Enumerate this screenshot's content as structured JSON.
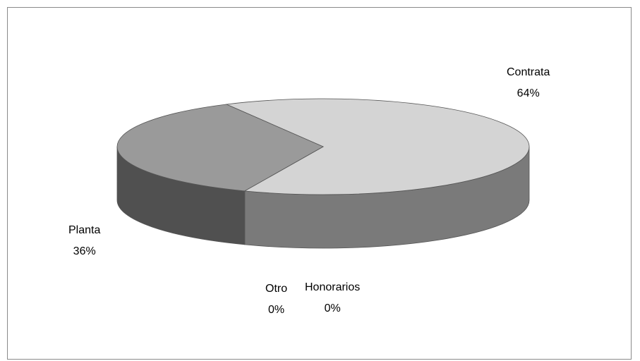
{
  "chart_data": {
    "type": "pie",
    "style": "3d",
    "title": "",
    "categories": [
      "Contrata",
      "Honorarios",
      "Otro",
      "Planta"
    ],
    "values": [
      64,
      0,
      0,
      36
    ],
    "labels": [
      "64%",
      "0%",
      "0%",
      "36%"
    ],
    "colors": {
      "Contrata": "#d4d4d4",
      "Planta": "#9a9a9a",
      "Contrata_side": "#7a7a7a",
      "Planta_side": "#505050"
    },
    "legend": "none",
    "label_position": "outside"
  }
}
